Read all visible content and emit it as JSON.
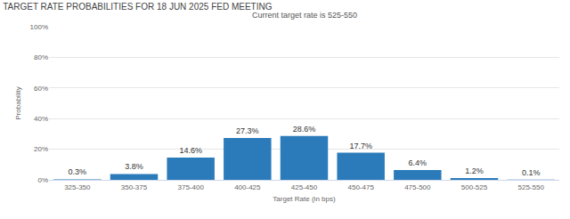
{
  "chart_data": {
    "type": "bar",
    "title": "TARGET RATE PROBABILITIES FOR 18 JUN 2025 FED MEETING",
    "subtitle": "Current target rate is 525-550",
    "x_label": "Target Rate (in bps)",
    "y_label": "Probability",
    "categories": [
      "325-350",
      "350-375",
      "375-400",
      "400-425",
      "425-450",
      "450-475",
      "475-500",
      "500-525",
      "525-550"
    ],
    "values": [
      0.3,
      3.8,
      14.6,
      27.3,
      28.6,
      17.7,
      6.4,
      1.2,
      0.1
    ],
    "value_labels": [
      "0.3%",
      "3.8%",
      "14.6%",
      "27.3%",
      "28.6%",
      "17.7%",
      "6.4%",
      "1.2%",
      "0.1%"
    ],
    "color": "#2b7bba",
    "ylim": [
      0,
      100
    ],
    "yticks": [
      {
        "value": 0,
        "label": "0%"
      },
      {
        "value": 20,
        "label": "20%"
      },
      {
        "value": 40,
        "label": "40%"
      },
      {
        "value": 60,
        "label": "60%"
      },
      {
        "value": 80,
        "label": "80%"
      },
      {
        "value": 100,
        "label": "100%"
      }
    ],
    "grid": true,
    "data_labels": true
  }
}
